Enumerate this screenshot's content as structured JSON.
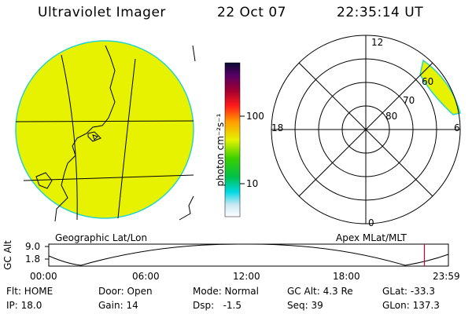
{
  "header": {
    "title": "Ultraviolet Imager",
    "date": "22 Oct 07",
    "time": "22:35:14 UT"
  },
  "colorbar": {
    "unit_label": "photon cm⁻²s⁻¹",
    "ticks": [
      "100",
      "10"
    ]
  },
  "panels": {
    "left_caption": "Geographic Lat/Lon",
    "right_caption": "Apex MLat/MLT"
  },
  "polar": {
    "mlt_labels": {
      "top": "12",
      "left": "18",
      "right": "6",
      "bottom": "0"
    },
    "lat_labels": [
      "60",
      "70",
      "80"
    ]
  },
  "altitude_plot": {
    "ylabel": "GC Alt",
    "yticks": [
      "9.0",
      "1.8"
    ],
    "xticks": [
      "00:00",
      "06:00",
      "12:00",
      "18:00",
      "23:59"
    ],
    "current_time_fraction": 0.94
  },
  "status": {
    "flt": "Flt: HOME",
    "ip": "IP: 18.0",
    "door": "Door: Open",
    "gain": "Gain: 14",
    "mode": "Mode: Normal",
    "dsp": "Dsp:   -1.5",
    "gcalt": "GC Alt: 4.3 Re",
    "seq": "Seq: 39",
    "glat": "GLat: -33.3",
    "glon": "GLon: 137.3"
  },
  "colors": {
    "image_fill": "#e6f200",
    "limb": "#2ad3c8",
    "current_time_marker": "#cc0033"
  }
}
